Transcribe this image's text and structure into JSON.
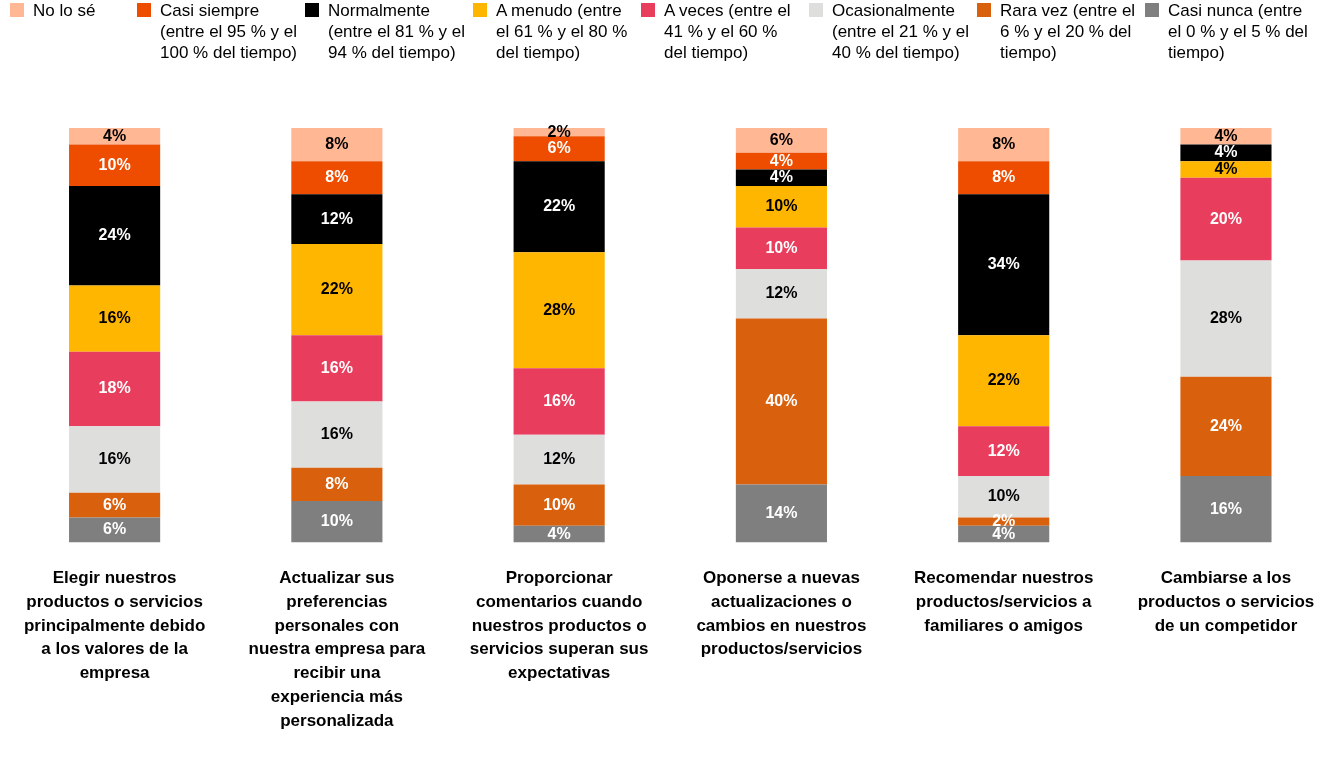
{
  "chart_data": {
    "type": "bar",
    "stacked": true,
    "legend": "top",
    "categories": [
      "Elegir nuestros productos o servicios principalmente debido a los valores de la empresa",
      "Actualizar sus preferencias personales con nuestra empresa para recibir una experiencia más personalizada",
      "Proporcionar comentarios cuando nuestros productos o servicios superan sus expectativas",
      "Oponerse a nuevas actualizaciones o cambios en nuestros productos/servicios",
      "Recomendar nuestros productos/servicios a familiares o amigos",
      "Cambiarse a los productos o servicios de un competidor"
    ],
    "series": [
      {
        "name": "Casi nunca (entre el 0 % y el 5 % del tiempo)",
        "color": "#7f7f7f",
        "values": [
          6,
          10,
          4,
          14,
          4,
          16
        ],
        "value_labels": [
          "6%",
          "10%",
          "4%",
          "14%",
          "4%",
          "16%"
        ]
      },
      {
        "name": "Rara vez (entre el 6 % y el 20 % del tiempo)",
        "color": "#d9600c",
        "values": [
          6,
          8,
          10,
          40,
          2,
          24
        ],
        "value_labels": [
          "6%",
          "8%",
          "10%",
          "40%",
          "2%",
          "24%"
        ]
      },
      {
        "name": "Ocasionalmente (entre el 21 % y el 40 % del tiempo)",
        "color": "#dededd",
        "values": [
          16,
          16,
          12,
          12,
          10,
          28
        ],
        "value_labels": [
          "16%",
          "16%",
          "12%",
          "12%",
          "10%",
          "28%"
        ]
      },
      {
        "name": "A veces (entre el 41 % y el 60 % del tiempo)",
        "color": "#e83d5c",
        "values": [
          18,
          16,
          16,
          10,
          12,
          20
        ],
        "value_labels": [
          "18%",
          "16%",
          "16%",
          "10%",
          "12%",
          "20%"
        ]
      },
      {
        "name": "A menudo (entre el 61 % y el 80 % del tiempo)",
        "color": "#ffb600",
        "values": [
          16,
          22,
          28,
          10,
          22,
          4
        ],
        "value_labels": [
          "16%",
          "22%",
          "28%",
          "10%",
          "22%",
          "4%"
        ]
      },
      {
        "name": "Normalmente (entre el 81 % y el 94 % del tiempo)",
        "color": "#000000",
        "values": [
          24,
          12,
          22,
          4,
          34,
          4
        ],
        "value_labels": [
          "24%",
          "12%",
          "22%",
          "4%",
          "34%",
          "4%"
        ]
      },
      {
        "name": "Casi siempre (entre el 95 % y el 100 % del tiempo)",
        "color": "#ee4d00",
        "values": [
          10,
          8,
          6,
          4,
          8,
          null
        ],
        "value_labels": [
          "10%",
          "8%",
          "6%",
          "4%",
          "8%",
          null
        ]
      },
      {
        "name": "No lo sé",
        "color": "#ffb794",
        "values": [
          4,
          8,
          2,
          6,
          8,
          4
        ],
        "value_labels": [
          "4%",
          "8%",
          "2%",
          "6%",
          "8%",
          "4%"
        ]
      }
    ]
  }
}
